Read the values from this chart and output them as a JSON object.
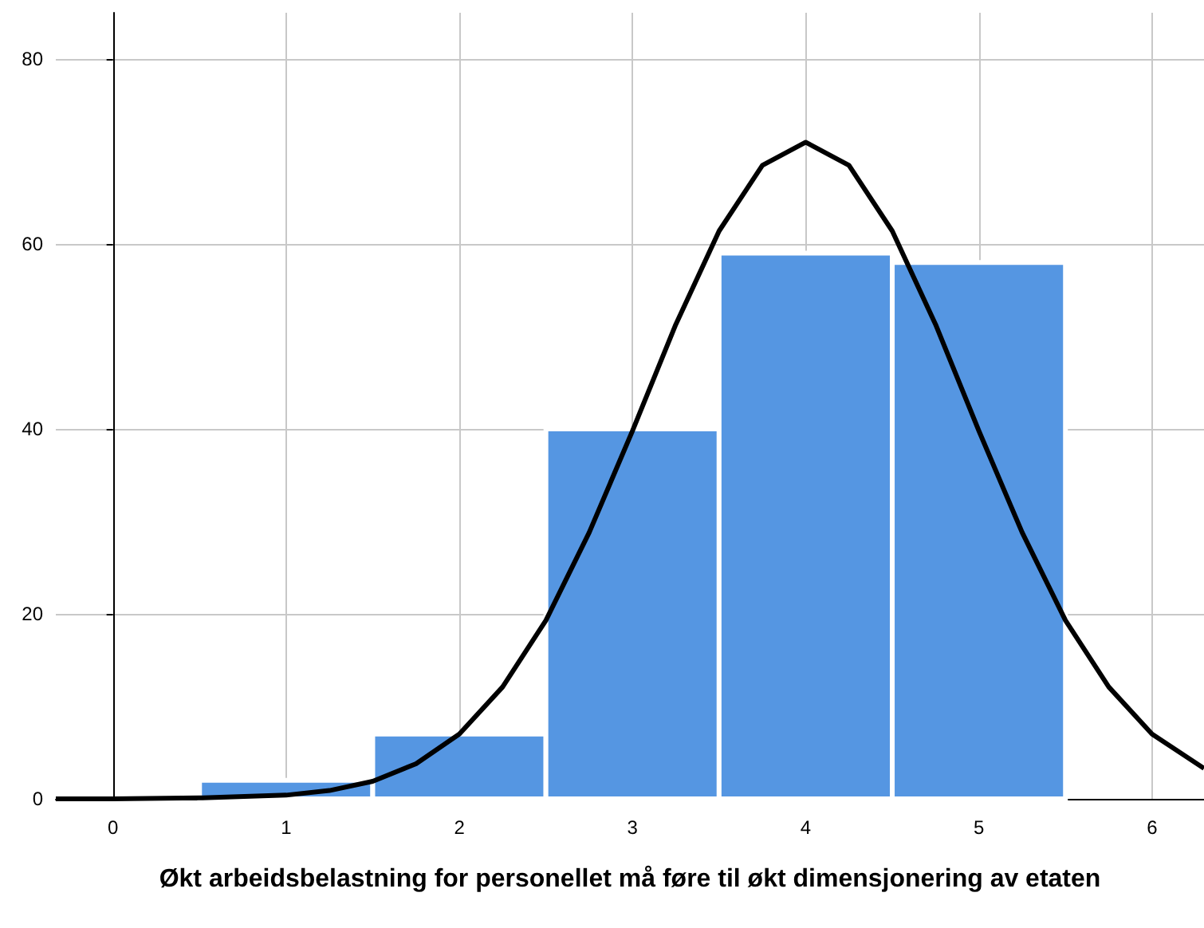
{
  "chart_data": {
    "type": "histogram",
    "xlabel": "Økt arbeidsbelastning for personellet må føre til økt dimensjonering av etaten",
    "bins": [
      0.5,
      1.5,
      2.5,
      3.5,
      4.5,
      5.5
    ],
    "values": [
      2,
      7,
      40,
      59,
      58
    ],
    "color": "#5596e2",
    "series": [
      {
        "type": "line",
        "color": "#000000",
        "x": [
          -0.33,
          0,
          0.5,
          1,
          1.25,
          1.5,
          1.75,
          2,
          2.25,
          2.5,
          2.75,
          3,
          3.25,
          3.5,
          3.75,
          4,
          4.25,
          4.5,
          4.75,
          5,
          5.25,
          5.5,
          5.75,
          6,
          6.3
        ],
        "values": [
          0,
          0,
          0.1,
          0.4,
          0.9,
          1.9,
          3.8,
          7,
          12.1,
          19.3,
          28.8,
          39.8,
          51.3,
          61.4,
          68.5,
          71,
          68.5,
          61.4,
          51.3,
          39.8,
          28.8,
          19.3,
          12.1,
          7,
          3.3
        ]
      }
    ],
    "xlim": [
      -0.33,
      6.3
    ],
    "xticks": [
      0,
      1,
      2,
      3,
      4,
      5,
      6
    ],
    "ylim": [
      0,
      85
    ],
    "yticks": [
      0,
      20,
      40,
      60,
      80
    ],
    "grid": true,
    "marker": "none",
    "line_style": "solid"
  }
}
